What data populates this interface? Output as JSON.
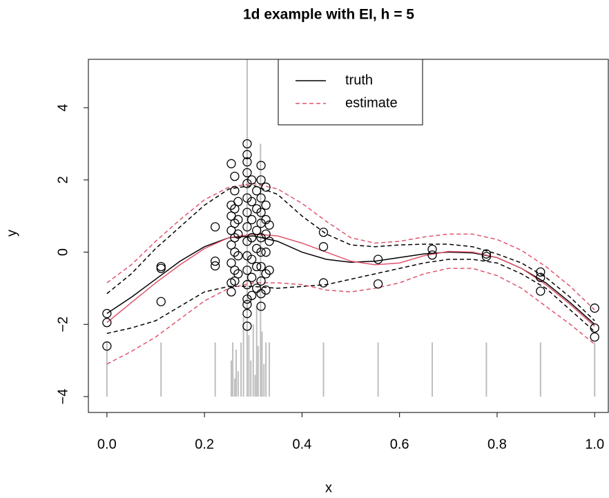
{
  "chart_data": {
    "type": "scatter",
    "title": "1d example with EI, h = 5",
    "xlabel": "x",
    "ylabel": "y",
    "xlim": [
      -0.038,
      1.028
    ],
    "ylim": [
      -4.44,
      5.34
    ],
    "xticks": [
      {
        "value": 0,
        "label": "0.0"
      },
      {
        "value": 0.2,
        "label": "0.2"
      },
      {
        "value": 0.4,
        "label": "0.4"
      },
      {
        "value": 0.6,
        "label": "0.6"
      },
      {
        "value": 0.8,
        "label": "0.8"
      },
      {
        "value": 1,
        "label": "1.0"
      }
    ],
    "yticks": [
      {
        "value": -4,
        "label": "−4"
      },
      {
        "value": -2,
        "label": "−2"
      },
      0,
      2,
      4
    ],
    "legend_position": "top",
    "x": [
      0,
      0.05,
      0.1,
      0.15,
      0.2,
      0.25,
      0.3,
      0.35,
      0.4,
      0.45,
      0.5,
      0.55,
      0.6,
      0.65,
      0.7,
      0.75,
      0.8,
      0.85,
      0.9,
      0.95,
      1
    ],
    "series": [
      {
        "name": "truth",
        "color": "#000000",
        "dash": false,
        "values": [
          -1.7,
          -1.25,
          -0.75,
          -0.25,
          0.15,
          0.4,
          0.45,
          0.3,
          0.0,
          -0.2,
          -0.28,
          -0.25,
          -0.15,
          -0.05,
          0.0,
          -0.02,
          -0.15,
          -0.45,
          -0.85,
          -1.4,
          -2.0
        ]
      },
      {
        "name": "estimate",
        "color": "#DF536B",
        "dash": true,
        "values": [
          -1.95,
          -1.4,
          -0.85,
          -0.35,
          0.1,
          0.4,
          0.5,
          0.45,
          0.25,
          0.0,
          -0.25,
          -0.35,
          -0.3,
          -0.1,
          0.02,
          0.0,
          -0.15,
          -0.45,
          -0.9,
          -1.45,
          -2.05
        ]
      }
    ],
    "bands": [
      {
        "color": "#000000",
        "dash": true,
        "values": [
          -1.15,
          -0.6,
          0.1,
          0.7,
          1.3,
          1.75,
          1.85,
          1.6,
          1.0,
          0.5,
          0.2,
          0.15,
          0.2,
          0.22,
          0.22,
          0.15,
          -0.05,
          -0.3,
          -0.7,
          -1.25,
          -1.9
        ]
      },
      {
        "color": "#000000",
        "dash": true,
        "values": [
          -2.25,
          -2.1,
          -1.9,
          -1.5,
          -1.1,
          -0.95,
          -0.95,
          -1.0,
          -0.95,
          -0.9,
          -0.75,
          -0.6,
          -0.45,
          -0.3,
          -0.2,
          -0.2,
          -0.3,
          -0.6,
          -1.0,
          -1.6,
          -2.2
        ]
      },
      {
        "color": "#DF536B",
        "dash": true,
        "values": [
          -0.85,
          -0.35,
          0.3,
          0.9,
          1.45,
          1.8,
          1.9,
          1.75,
          1.35,
          0.85,
          0.4,
          0.25,
          0.3,
          0.42,
          0.5,
          0.5,
          0.35,
          0.05,
          -0.4,
          -0.95,
          -1.6
        ]
      },
      {
        "color": "#DF536B",
        "dash": true,
        "values": [
          -3.1,
          -2.75,
          -2.35,
          -1.85,
          -1.35,
          -1.0,
          -0.85,
          -0.85,
          -0.9,
          -1.05,
          -1.1,
          -1.0,
          -0.85,
          -0.6,
          -0.45,
          -0.45,
          -0.65,
          -1.0,
          -1.5,
          -2.0,
          -2.55
        ]
      }
    ],
    "points": {
      "color": "#000000",
      "x": [
        0,
        0,
        0,
        0.111,
        0.111,
        0.111,
        0.222,
        0.222,
        0.222,
        0.444,
        0.444,
        0.444,
        0.556,
        0.556,
        0.667,
        0.667,
        0.778,
        0.778,
        0.889,
        0.889,
        0.889,
        1,
        1,
        1,
        0.333,
        0.333,
        0.333,
        0.255,
        0.255,
        0.255,
        0.255,
        0.255,
        0.255,
        0.255,
        0.255,
        0.262,
        0.262,
        0.262,
        0.262,
        0.262,
        0.262,
        0.262,
        0.262,
        0.269,
        0.269,
        0.269,
        0.269,
        0.269,
        0.2875,
        0.2875,
        0.2875,
        0.2875,
        0.2875,
        0.2875,
        0.2875,
        0.2875,
        0.2875,
        0.2875,
        0.2875,
        0.2875,
        0.2875,
        0.2875,
        0.2875,
        0.2875,
        0.297,
        0.297,
        0.297,
        0.297,
        0.297,
        0.297,
        0.297,
        0.307,
        0.307,
        0.307,
        0.307,
        0.307,
        0.307,
        0.316,
        0.316,
        0.316,
        0.316,
        0.316,
        0.316,
        0.316,
        0.316,
        0.316,
        0.316,
        0.316,
        0.326,
        0.326,
        0.326,
        0.326,
        0.326,
        0.326,
        0.326
      ],
      "y": [
        -1.7,
        -1.95,
        -2.6,
        -0.4,
        -0.45,
        -1.37,
        0.7,
        -0.25,
        -0.38,
        0.55,
        0.15,
        -0.85,
        -0.2,
        -0.88,
        0.08,
        -0.08,
        -0.05,
        -0.12,
        -0.55,
        -0.7,
        -1.08,
        -1.55,
        -2.1,
        -2.35,
        0.75,
        0.3,
        -0.5,
        2.45,
        1.3,
        1.0,
        0.6,
        0.2,
        -0.3,
        -0.85,
        -1.1,
        2.1,
        1.7,
        1.2,
        0.8,
        0.4,
        0.0,
        -0.5,
        -0.8,
        1.4,
        0.9,
        0.5,
        -0.1,
        -0.6,
        3.0,
        2.7,
        2.5,
        2.2,
        1.9,
        1.5,
        1.1,
        0.7,
        0.3,
        -0.1,
        -0.5,
        -0.9,
        -1.3,
        -1.7,
        -2.05,
        -1.45,
        2.0,
        1.4,
        0.9,
        0.4,
        -0.2,
        -0.7,
        -1.2,
        1.7,
        1.2,
        0.6,
        0.1,
        -0.4,
        -1.0,
        2.4,
        2.0,
        1.5,
        1.1,
        0.8,
        0.4,
        0.0,
        -0.4,
        -0.8,
        -1.15,
        -1.5,
        1.8,
        1.3,
        0.9,
        0.5,
        0.0,
        -0.6,
        -1.05
      ]
    },
    "segments": {
      "color": "#BEBEBE",
      "base": -4,
      "x": [
        0,
        0.111,
        0.222,
        0.333,
        0.444,
        0.556,
        0.667,
        0.778,
        0.889,
        1,
        0.255,
        0.258,
        0.262,
        0.265,
        0.269,
        0.275,
        0.28,
        0.2875,
        0.291,
        0.295,
        0.3,
        0.304,
        0.307,
        0.31,
        0.315,
        0.318,
        0.322,
        0.326
      ],
      "top": [
        -2.5,
        -2.5,
        -2.5,
        -2.5,
        -2.5,
        -2.5,
        -2.5,
        -2.5,
        -2.5,
        -2.5,
        -3.0,
        -2.5,
        -3.5,
        -2.7,
        -3.3,
        -2.5,
        -1.8,
        7,
        -2.3,
        -3.0,
        -2.0,
        -3.4,
        -1.5,
        -2.6,
        3.0,
        -2.2,
        -3.1,
        -2.5
      ]
    }
  }
}
